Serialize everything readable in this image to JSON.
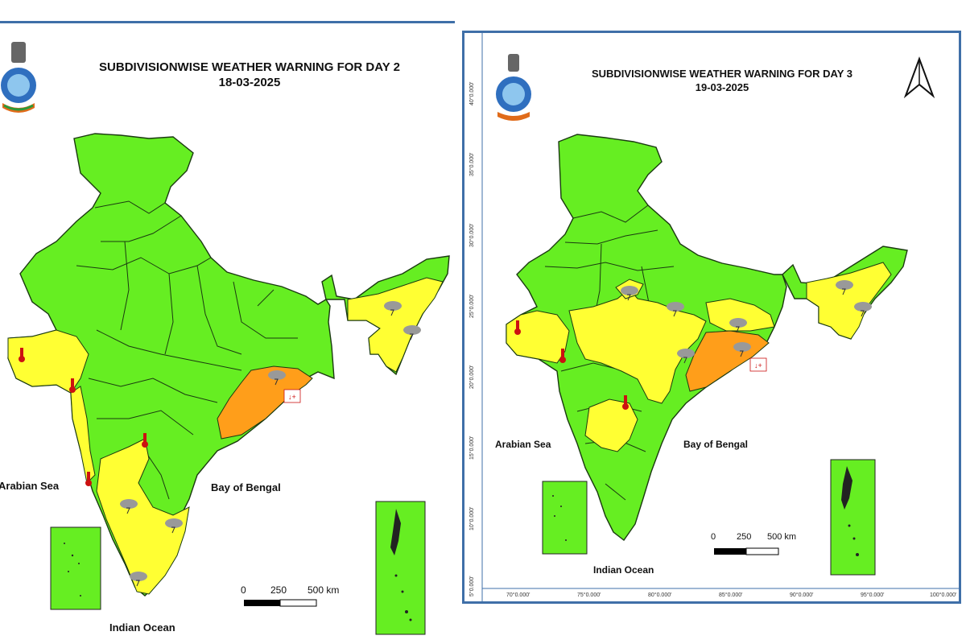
{
  "colors": {
    "no_warning": "#66ee22",
    "yellow_warning": "#ffff33",
    "orange_warning": "#ff9e1a",
    "frame": "#3f6fa8"
  },
  "icons": [
    "emblem-icon",
    "thunderstorm-icon",
    "heat-thermometer-icon",
    "warm-night-icon",
    "north-arrow-icon"
  ],
  "day2": {
    "title_line1": "SUBDIVISIONWISE WEATHER WARNING FOR DAY 2",
    "title_line2": "18-03-2025",
    "arabian_sea": "Arabian Sea",
    "bay_of_bengal": "Bay of Bengal",
    "indian_ocean": "Indian Ocean",
    "scale": {
      "s0": "0",
      "s250": "250",
      "s500": "500 km"
    }
  },
  "day3": {
    "title_line1": "SUBDIVISIONWISE WEATHER WARNING FOR DAY 3",
    "title_line2": "19-03-2025",
    "arabian_sea": "Arabian Sea",
    "bay_of_bengal": "Bay of Bengal",
    "indian_ocean": "Indian Ocean",
    "scale": {
      "s0": "0",
      "s250": "250",
      "s500": "500 km"
    },
    "lat_labels": [
      "40°0.000'",
      "35°0.000'",
      "30°0.000'",
      "25°0.000'",
      "20°0.000'",
      "15°0.000'",
      "10°0.000'",
      "5°0.000'"
    ],
    "lon_labels": [
      "70°0.000'",
      "75°0.000'",
      "80°0.000'",
      "85°0.000'",
      "90°0.000'",
      "95°0.000'",
      "100°0.000'"
    ]
  }
}
